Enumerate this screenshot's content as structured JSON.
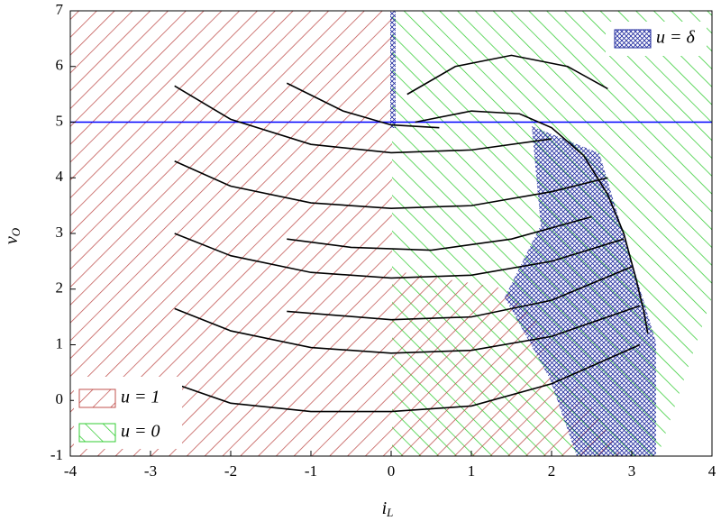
{
  "chart_data": {
    "type": "line",
    "x_label": {
      "main": "i",
      "sub": "L"
    },
    "y_label": {
      "main": "v",
      "sub": "O"
    },
    "xlim": [
      -4,
      4
    ],
    "xticks": [
      -4,
      -3,
      -2,
      -1,
      0,
      1,
      2,
      3,
      4
    ],
    "ylim": [
      -1,
      7
    ],
    "yticks": [
      -1,
      0,
      1,
      2,
      3,
      4,
      5,
      6,
      7
    ],
    "reference_line": {
      "y": 5,
      "color": "#0000ff"
    },
    "regions": [
      {
        "name": "u = 1",
        "color": "#c0504d"
      },
      {
        "name": "u = 0",
        "color": "#33cc33"
      },
      {
        "name": "u = δ",
        "color": "#1f2a9e"
      }
    ],
    "series": [
      {
        "color": "#000000",
        "x": [
          -2.7,
          -2,
          -1,
          0,
          1,
          2
        ],
        "y": [
          5.65,
          5.05,
          4.6,
          4.45,
          4.5,
          4.7
        ]
      },
      {
        "color": "#000000",
        "x": [
          -2.7,
          -2,
          -1,
          0,
          1,
          2,
          2.7
        ],
        "y": [
          4.3,
          3.85,
          3.55,
          3.45,
          3.5,
          3.75,
          4.0
        ]
      },
      {
        "color": "#000000",
        "x": [
          -2.7,
          -2,
          -1,
          0,
          1,
          2,
          2.9
        ],
        "y": [
          3.0,
          2.6,
          2.3,
          2.2,
          2.25,
          2.5,
          2.9
        ]
      },
      {
        "color": "#000000",
        "x": [
          -2.7,
          -2,
          -1,
          0,
          1,
          2,
          3.1
        ],
        "y": [
          1.65,
          1.25,
          0.95,
          0.85,
          0.9,
          1.15,
          1.7
        ]
      },
      {
        "color": "#000000",
        "x": [
          -2.7,
          -2,
          -1,
          0,
          1,
          2,
          3.1
        ],
        "y": [
          0.3,
          -0.05,
          -0.2,
          -0.2,
          -0.1,
          0.3,
          1.0
        ]
      },
      {
        "color": "#000000",
        "x": [
          -1.3,
          -0.6,
          0,
          0.6
        ],
        "y": [
          5.7,
          5.2,
          4.95,
          4.9
        ]
      },
      {
        "color": "#000000",
        "x": [
          -1.3,
          -0.5,
          0.5,
          1.5,
          2.5
        ],
        "y": [
          2.9,
          2.75,
          2.7,
          2.9,
          3.3
        ]
      },
      {
        "color": "#000000",
        "x": [
          -1.3,
          0,
          1,
          2,
          3
        ],
        "y": [
          1.6,
          1.45,
          1.5,
          1.8,
          2.4
        ]
      },
      {
        "color": "#000000",
        "x": [
          0.3,
          1,
          1.6,
          2,
          2.4,
          2.7,
          2.9,
          3.05,
          3.15,
          3.2
        ],
        "y": [
          5.0,
          5.2,
          5.15,
          4.9,
          4.4,
          3.7,
          3.0,
          2.2,
          1.6,
          1.2
        ]
      },
      {
        "color": "#000000",
        "x": [
          0.2,
          0.8,
          1.5,
          2.2,
          2.7
        ],
        "y": [
          5.5,
          6.0,
          6.2,
          6.0,
          5.6
        ]
      }
    ]
  }
}
